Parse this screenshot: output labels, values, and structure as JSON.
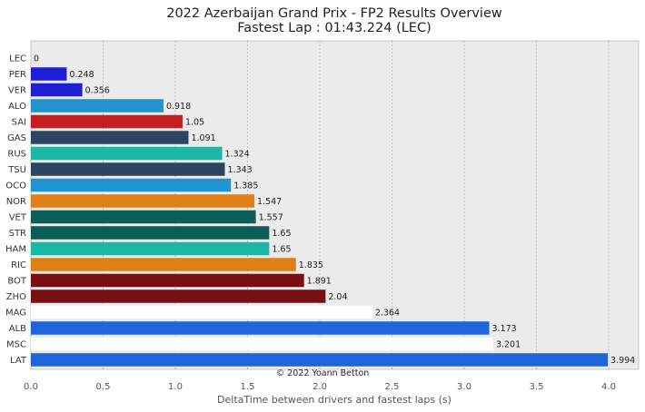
{
  "chart_data": {
    "type": "bar",
    "orientation": "horizontal",
    "title": "2022 Azerbaijan Grand Prix - FP2 Results Overview",
    "subtitle": "Fastest Lap : 01:43.224 (LEC)",
    "xlabel": "DeltaTime between drivers and fastest laps (s)",
    "ylabel": "",
    "xlim": [
      0,
      4.2
    ],
    "xticks": [
      "0.0",
      "0.5",
      "1.0",
      "1.5",
      "2.0",
      "2.5",
      "3.0",
      "3.5",
      "4.0"
    ],
    "grid": true,
    "annotation": "© 2022 Yoann Betton",
    "categories": [
      "LEC",
      "PER",
      "VER",
      "ALO",
      "SAI",
      "GAS",
      "RUS",
      "TSU",
      "OCO",
      "NOR",
      "VET",
      "STR",
      "HAM",
      "RIC",
      "BOT",
      "ZHO",
      "MAG",
      "ALB",
      "MSC",
      "LAT"
    ],
    "values": [
      0,
      0.248,
      0.356,
      0.918,
      1.05,
      1.091,
      1.324,
      1.343,
      1.385,
      1.547,
      1.557,
      1.65,
      1.65,
      1.835,
      1.891,
      2.04,
      2.364,
      3.173,
      3.201,
      3.994
    ],
    "value_labels": [
      "0",
      "0.248",
      "0.356",
      "0.918",
      "1.05",
      "1.091",
      "1.324",
      "1.343",
      "1.385",
      "1.547",
      "1.557",
      "1.65",
      "1.65",
      "1.835",
      "1.891",
      "2.04",
      "2.364",
      "3.173",
      "3.201",
      "3.994"
    ],
    "colors": [
      "#e8002d",
      "#1e1ed6",
      "#1e1ed6",
      "#2293d1",
      "#c41e1e",
      "#2b4562",
      "#1bb7a6",
      "#2b4562",
      "#2293d1",
      "#df7f18",
      "#0b5d55",
      "#0b5d55",
      "#1bb7a6",
      "#df7f18",
      "#7a0e13",
      "#7a0e13",
      "#ffffff",
      "#1e64db",
      "#ffffff",
      "#1e64db"
    ]
  }
}
